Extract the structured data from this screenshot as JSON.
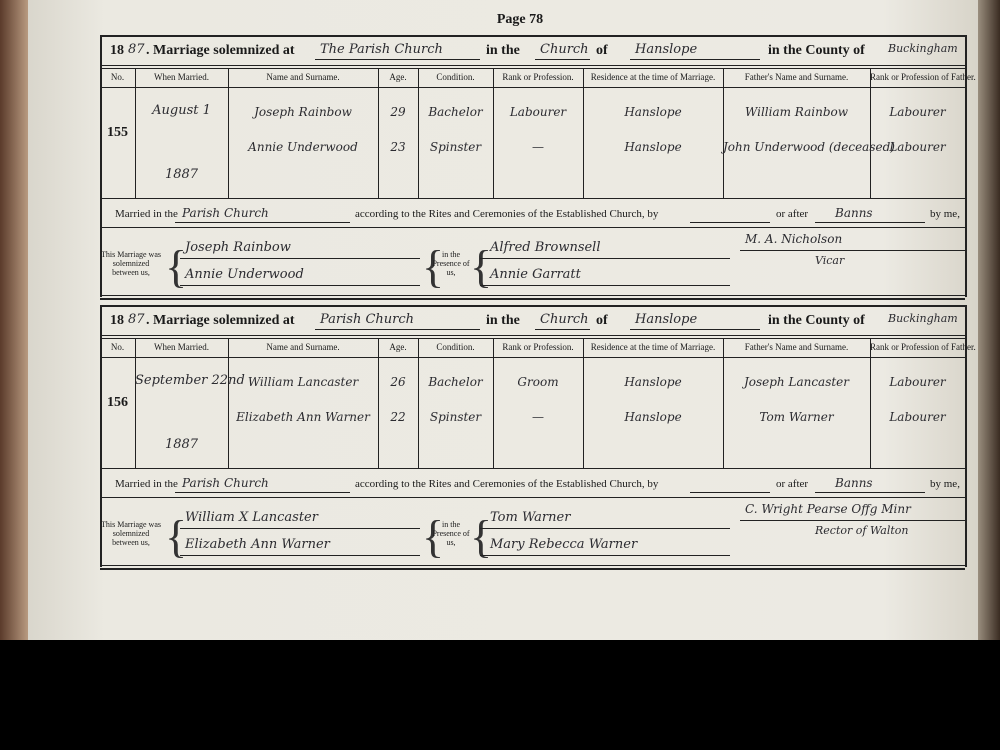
{
  "page": {
    "title": "Page 78"
  },
  "columns": [
    "No.",
    "When Married.",
    "Name and Surname.",
    "Age.",
    "Condition.",
    "Rank or Profession.",
    "Residence at the time of Marriage.",
    "Father's Name and Surname.",
    "Rank or Profession of Father."
  ],
  "labels": {
    "marriage_solemnized": ". Marriage solemnized at",
    "in_the": "in the",
    "of": "of",
    "county": "in the County of",
    "married_in": "Married in the",
    "rites": "according to the Rites and Ceremonies of the Established Church, by",
    "or_after": "or after",
    "by_me": "by me,",
    "this_marriage": "This Marriage was solemnized between us,",
    "presence": "in the Presence of us,"
  },
  "entries": [
    {
      "year_printed": "18",
      "year_written": "87",
      "place": "The Parish Church",
      "district": "Church",
      "parish": "Hanslope",
      "county": "Buckingham",
      "number": "155",
      "date": "August 1",
      "date_year": "1887",
      "rows": [
        [
          "Joseph Rainbow",
          "29",
          "Bachelor",
          "Labourer",
          "Hanslope",
          "William Rainbow",
          "Labourer"
        ],
        [
          "Annie Underwood",
          "23",
          "Spinster",
          "—",
          "Hanslope",
          "John Underwood (deceased)",
          "Labourer"
        ]
      ],
      "church": "Parish Church",
      "after": "Banns",
      "officiant": "M. A. Nicholson",
      "officiant_title": "Vicar",
      "spouses": [
        "Joseph Rainbow",
        "Annie Underwood"
      ],
      "witnesses": [
        "Alfred Brownsell",
        "Annie Garratt"
      ]
    },
    {
      "year_printed": "18",
      "year_written": "87",
      "place": "Parish Church",
      "district": "Church",
      "parish": "Hanslope",
      "county": "Buckingham",
      "number": "156",
      "date": "September 22nd",
      "date_year": "1887",
      "rows": [
        [
          "William Lancaster",
          "26",
          "Bachelor",
          "Groom",
          "Hanslope",
          "Joseph Lancaster",
          "Labourer"
        ],
        [
          "Elizabeth Ann Warner",
          "22",
          "Spinster",
          "—",
          "Hanslope",
          "Tom Warner",
          "Labourer"
        ]
      ],
      "church": "Parish Church",
      "after": "Banns",
      "officiant": "C. Wright Pearse Offg Minr",
      "officiant_title": "Rector of Walton",
      "spouses": [
        "William X Lancaster",
        "Elizabeth Ann Warner"
      ],
      "witnesses": [
        "Tom Warner",
        "Mary Rebecca Warner"
      ]
    }
  ]
}
